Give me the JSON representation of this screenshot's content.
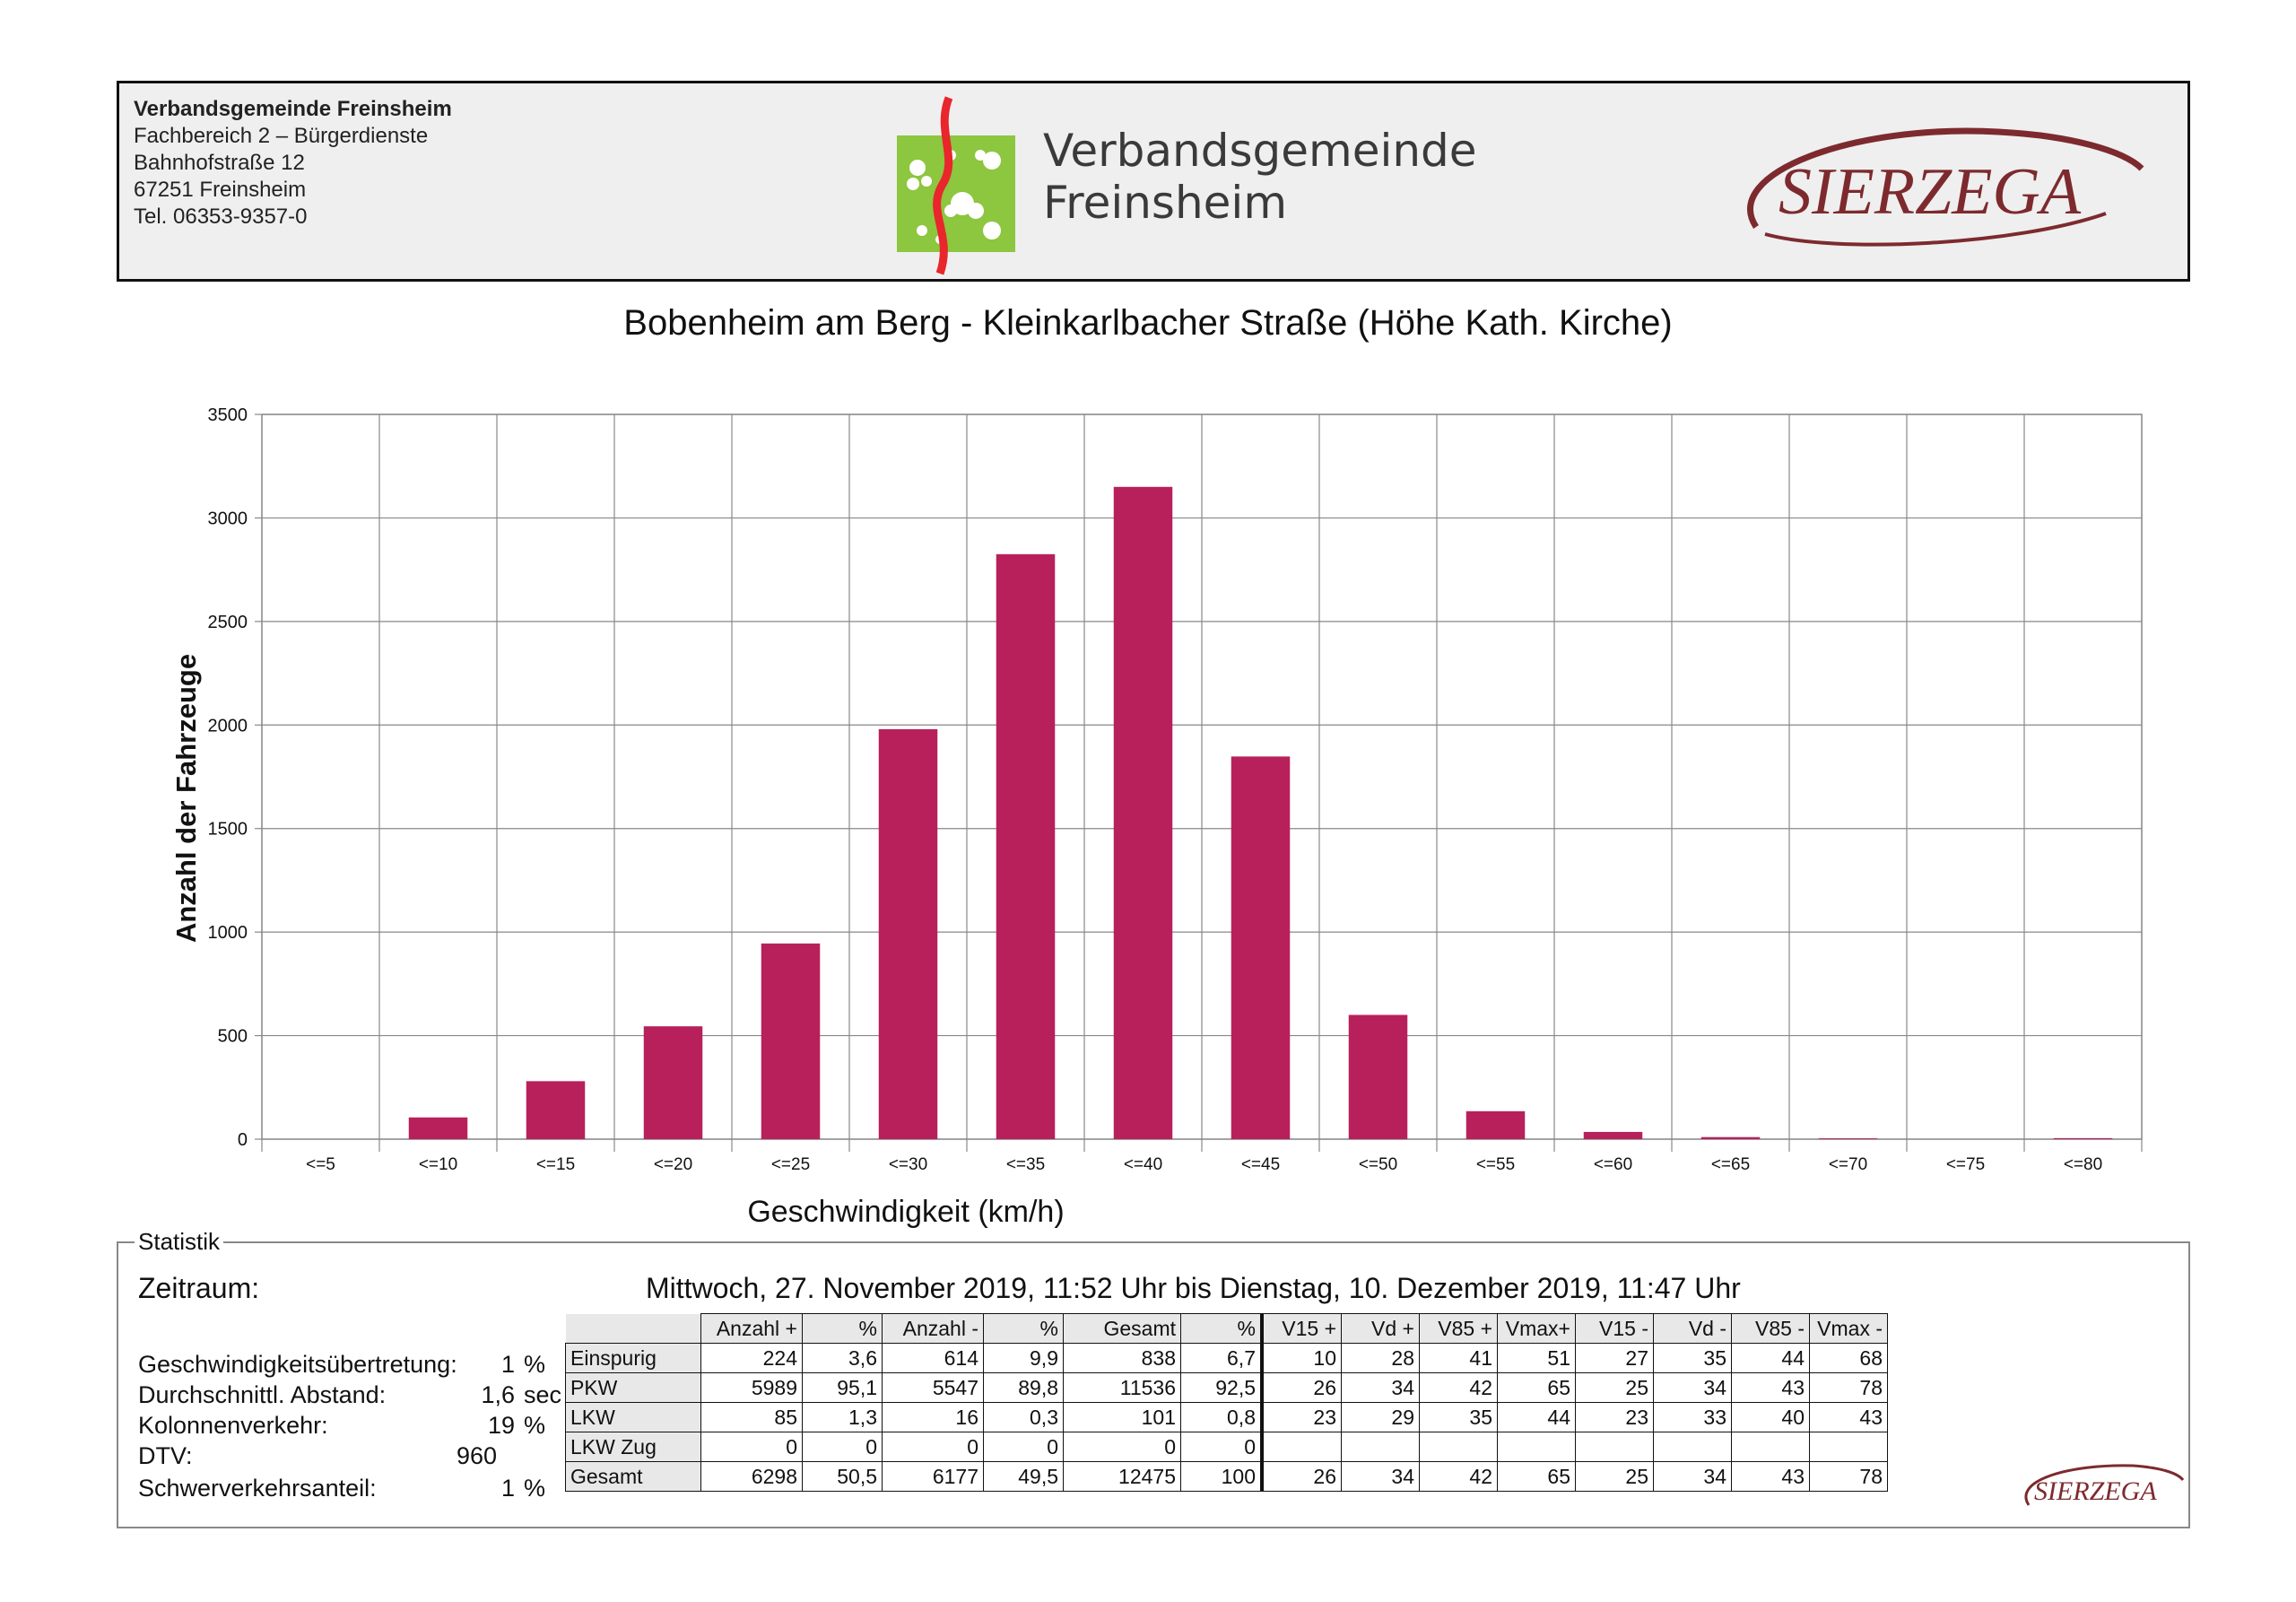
{
  "header": {
    "address_lines": [
      "Verbandsgemeinde Freinsheim",
      "Fachbereich 2 – Bürgerdienste",
      "Bahnhofstraße 12",
      "67251 Freinsheim",
      "Tel. 06353-9357-0"
    ],
    "logo_text_line1": "Verbandsgemeinde",
    "logo_text_line2": "Freinsheim",
    "brand_logo": "SIERZEGA"
  },
  "chart_data": {
    "type": "bar",
    "title": "Bobenheim am Berg - Kleinkarlbacher Straße (Höhe Kath. Kirche)",
    "xlabel": "Geschwindigkeit (km/h)",
    "ylabel": "Anzahl der Fahrzeuge",
    "categories": [
      "<=5",
      "<=10",
      "<=15",
      "<=20",
      "<=25",
      "<=30",
      "<=35",
      "<=40",
      "<=45",
      "<=50",
      "<=55",
      "<=60",
      "<=65",
      "<=70",
      "<=75",
      "<=80"
    ],
    "values": [
      0,
      105,
      280,
      545,
      945,
      1980,
      2825,
      3150,
      1848,
      600,
      135,
      35,
      10,
      4,
      0,
      5
    ],
    "ylim": [
      0,
      3500
    ],
    "yticks": [
      0,
      500,
      1000,
      1500,
      2000,
      2500,
      3000,
      3500
    ],
    "grid": true,
    "bar_color": "#b8205c"
  },
  "stats": {
    "section_title": "Statistik",
    "period_label": "Zeitraum:",
    "period_value": "Mittwoch, 27. November 2019, 11:52 Uhr bis Dienstag, 10. Dezember 2019, 11:47 Uhr",
    "summary": [
      {
        "label": "Geschwindigkeitsübertretung:",
        "value": "1",
        "unit": "%"
      },
      {
        "label": "Durchschnittl. Abstand:",
        "value": "1,6",
        "unit": "sec"
      },
      {
        "label": "Kolonnenverkehr:",
        "value": "19",
        "unit": "%"
      },
      {
        "label": "DTV:",
        "value": "960",
        "unit": ""
      },
      {
        "label": "Schwerverkehrsanteil:",
        "value": "1",
        "unit": "%"
      }
    ],
    "table": {
      "columns": [
        "Anzahl +",
        "%",
        "Anzahl -",
        "%",
        "Gesamt",
        "%",
        "V15 +",
        "Vd +",
        "V85 +",
        "Vmax+",
        "V15 -",
        "Vd -",
        "V85 -",
        "Vmax -"
      ],
      "rows": [
        {
          "label": "Einspurig",
          "cells": [
            "224",
            "3,6",
            "614",
            "9,9",
            "838",
            "6,7",
            "10",
            "28",
            "41",
            "51",
            "27",
            "35",
            "44",
            "68"
          ]
        },
        {
          "label": "PKW",
          "cells": [
            "5989",
            "95,1",
            "5547",
            "89,8",
            "11536",
            "92,5",
            "26",
            "34",
            "42",
            "65",
            "25",
            "34",
            "43",
            "78"
          ]
        },
        {
          "label": "LKW",
          "cells": [
            "85",
            "1,3",
            "16",
            "0,3",
            "101",
            "0,8",
            "23",
            "29",
            "35",
            "44",
            "23",
            "33",
            "40",
            "43"
          ]
        },
        {
          "label": "LKW Zug",
          "cells": [
            "0",
            "0",
            "0",
            "0",
            "0",
            "0",
            "",
            "",
            "",
            "",
            "",
            "",
            "",
            ""
          ]
        },
        {
          "label": "Gesamt",
          "cells": [
            "6298",
            "50,5",
            "6177",
            "49,5",
            "12475",
            "100",
            "26",
            "34",
            "42",
            "65",
            "25",
            "34",
            "43",
            "78"
          ]
        }
      ]
    },
    "small_logo": "SIERZEGA"
  }
}
